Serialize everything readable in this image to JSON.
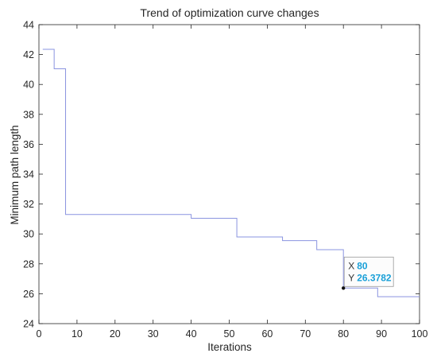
{
  "chart_data": {
    "type": "line",
    "title": "Trend of optimization curve changes",
    "xlabel": "Iterations",
    "ylabel": "Minimum path length",
    "xlim": [
      0,
      100
    ],
    "ylim": [
      24,
      44
    ],
    "xticks": [
      0,
      10,
      20,
      30,
      40,
      50,
      60,
      70,
      80,
      90,
      100
    ],
    "yticks": [
      24,
      26,
      28,
      30,
      32,
      34,
      36,
      38,
      40,
      42,
      44
    ],
    "grid": false,
    "line_color": "#8a94e0",
    "series": [
      {
        "step": "post",
        "x": [
          1,
          4,
          6,
          7,
          40,
          52,
          64,
          73,
          80,
          89,
          100
        ],
        "y": [
          42.35,
          41.05,
          41.05,
          31.3,
          31.05,
          29.8,
          29.55,
          28.95,
          26.3782,
          25.8,
          25.8
        ]
      }
    ],
    "datatip": {
      "x_key": "X",
      "x_value": "80",
      "y_key": "Y",
      "y_value": "26.3782",
      "value_color": "#1aa0d8",
      "point": [
        80,
        26.3782
      ]
    }
  }
}
